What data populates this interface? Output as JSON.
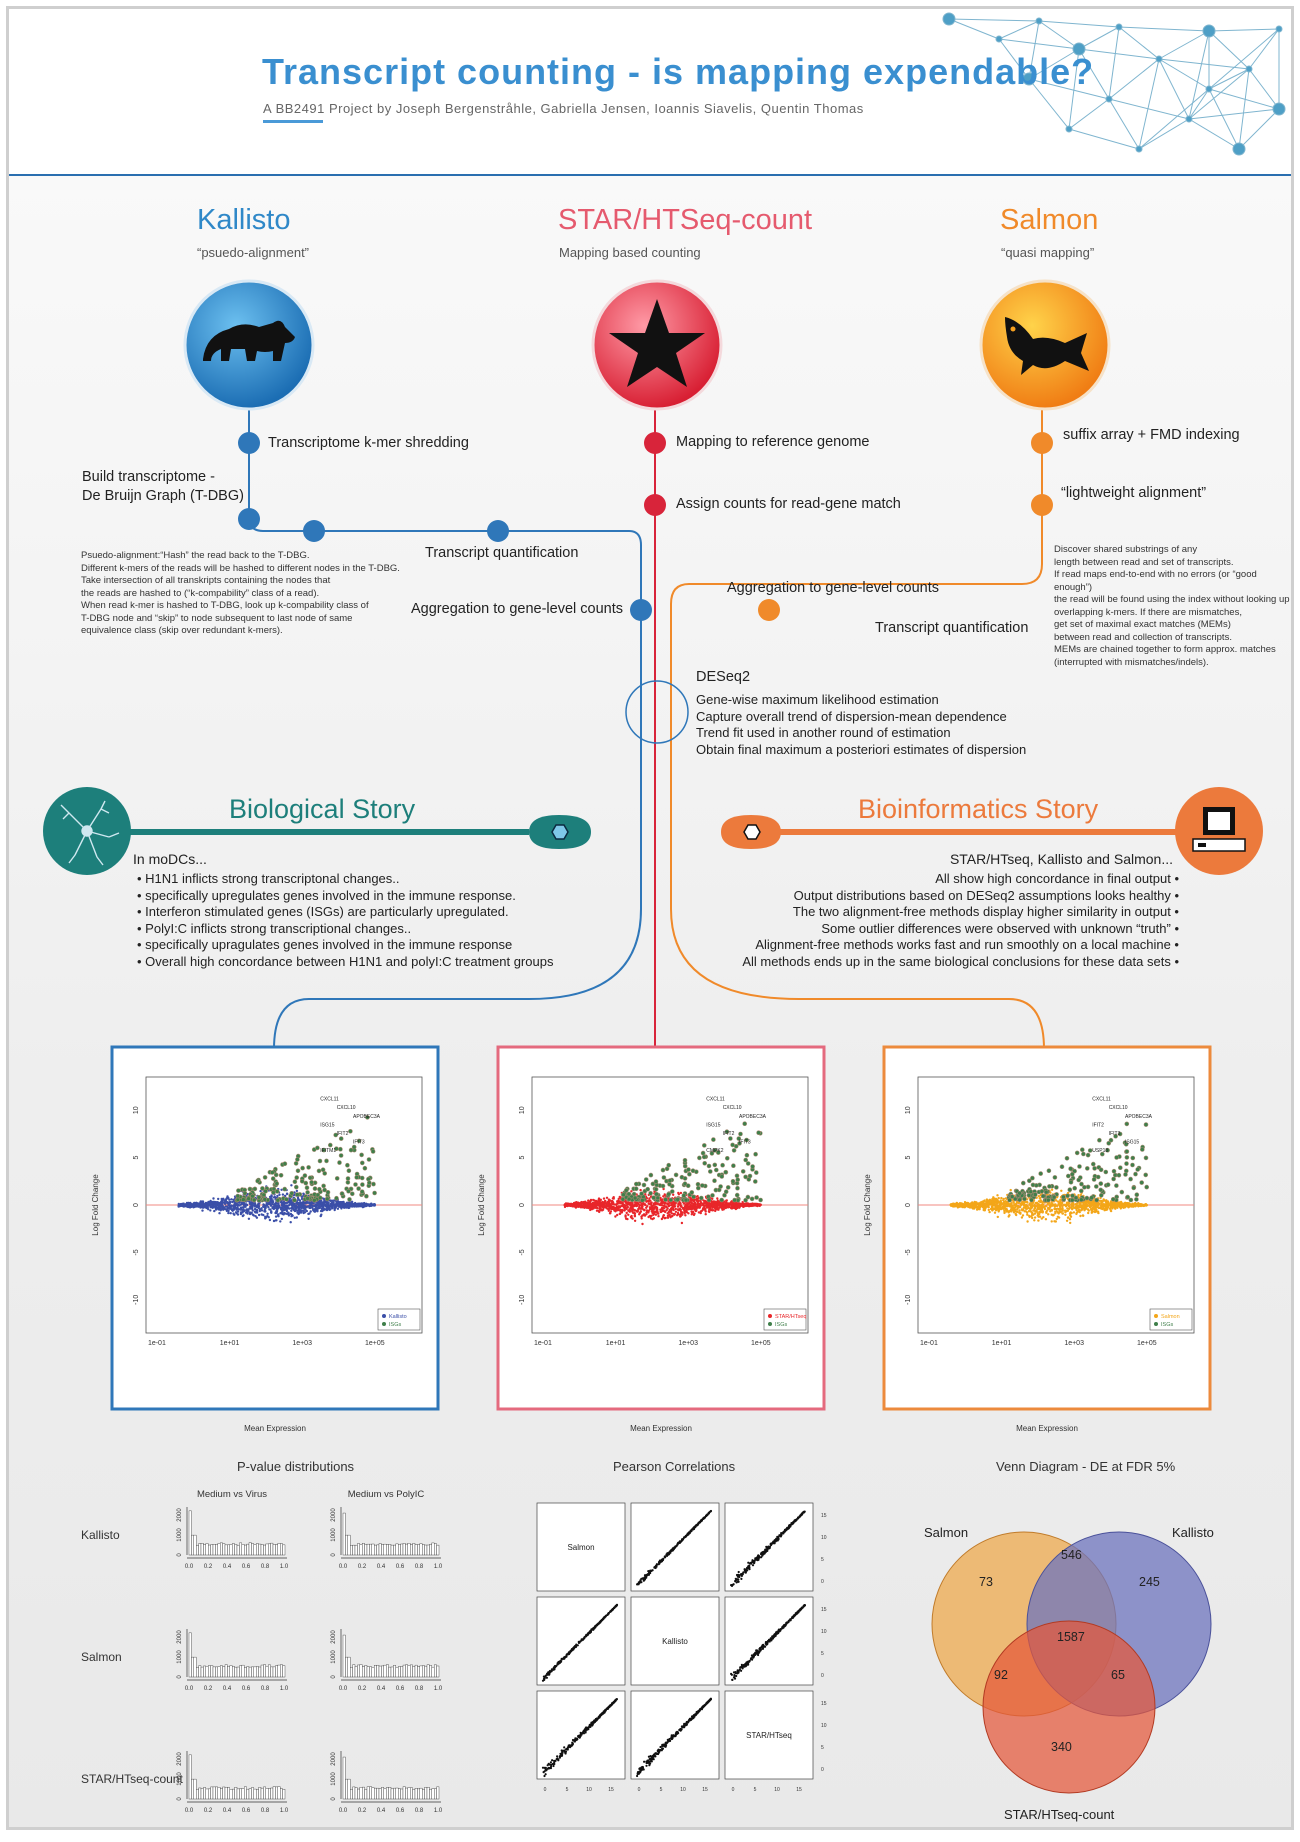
{
  "header": {
    "title": "Transcript counting - is mapping expendable?",
    "subtitle": "A BB2491 Project by Joseph Bergenstråhle, Gabriella Jensen, Ioannis Siavelis, Quentin Thomas"
  },
  "colors": {
    "kallisto": "#2f77b9",
    "star": "#d8243a",
    "salmon": "#f08a2a",
    "bio": "#1d7f7b",
    "bioinfo": "#ec7a3c",
    "title": "#3a8fd0"
  },
  "methods": {
    "kallisto": {
      "name": "Kallisto",
      "sub": "“psuedo-alignment”",
      "icon": "bear-icon"
    },
    "star": {
      "name": "STAR/HTSeq-count",
      "sub": "Mapping based counting",
      "icon": "star-icon"
    },
    "salmon": {
      "name": "Salmon",
      "sub": "“quasi mapping”",
      "icon": "fish-icon"
    }
  },
  "kallisto_steps": {
    "shredding": "Transcriptome k-mer shredding",
    "build1": "Build transcriptome -",
    "build2": "De Bruijn Graph (T-DBG)",
    "quant": "Transcript quantification",
    "agg": "Aggregation to gene-level counts",
    "notes": [
      "Psuedo-alignment:“Hash” the read back to the T-DBG.",
      "Different k-mers of the reads will be hashed to different nodes in the T-DBG.",
      "Take intersection of all transkripts containing the nodes that",
      "the reads are hashed to (“k-compability” class of a read).",
      "When read k-mer is hashed to T-DBG, look up k-compability class of",
      "T-DBG node and “skip” to node subsequent to last node of same",
      "equivalence class (skip over redundant k-mers)."
    ]
  },
  "star_steps": {
    "map": "Mapping to reference genome",
    "assign": "Assign counts for read-gene match"
  },
  "salmon_steps": {
    "suffix": "suffix array + FMD indexing",
    "light": "“lightweight alignment”",
    "agg": "Aggregation to gene-level counts",
    "quant": "Transcript quantification",
    "notes": [
      "Discover shared substrings of any",
      "length between read and set of transcripts.",
      "If read maps end-to-end with no errors (or “good enough”)",
      "the read will be found using the index without looking up",
      "overlapping k-mers. If there are mismatches,",
      "get set of maximal exact matches (MEMs)",
      "between read and collection of transcripts.",
      "MEMs are chained together to form approx. matches",
      "(interrupted with mismatches/indels)."
    ]
  },
  "deseq": {
    "title": "DESeq2",
    "lines": [
      "Gene-wise maximum likelihood estimation",
      "Capture overall trend of dispersion-mean dependence",
      "Trend fit used in another round of estimation",
      "Obtain final maximum a posteriori estimates of dispersion"
    ]
  },
  "bio_story": {
    "title": "Biological Story",
    "intro": "In moDCs...",
    "bullets": [
      "• H1N1 inflicts strong transcriptonal changes..",
      "• specifically upregulates genes involved in the immune response.",
      "• Interferon stimulated genes (ISGs) are particularly upregulated.",
      "• PolyI:C inflicts strong transcriptional changes..",
      "• specifically upragulates genes involved in the immune response",
      "• Overall high concordance between H1N1 and polyI:C treatment groups"
    ]
  },
  "bioinfo_story": {
    "title": "Bioinformatics Story",
    "intro": "STAR/HTseq, Kallisto and Salmon...",
    "bullets": [
      "All show high concordance in final output •",
      "Output distributions based on DESeq2 assumptions looks healthy •",
      "The two alignment-free methods display higher similarity in output •",
      "Some outlier differences were observed with unknown “truth” •",
      "Alignment-free methods works fast and run smoothly on a local machine •",
      "All methods ends up in the same biological conclusions for these data sets •"
    ]
  },
  "ma_plots": {
    "xlabel": "Mean Expression",
    "ylabel": "Log Fold Change",
    "xticks": [
      "1e-01",
      "1e+01",
      "1e+03",
      "1e+05"
    ],
    "yticks": [
      "-10",
      "-5",
      "0",
      "5",
      "10"
    ],
    "isg_label": "ISGs",
    "plots": [
      {
        "legend": "Kallisto",
        "color": "#3b4fa8",
        "genes": [
          "CXCL11",
          "CXCL10",
          "APOBEC3A",
          "ISG15",
          "IFIT2",
          "IFIT3",
          "IFITM1"
        ]
      },
      {
        "legend": "STAR/HTseq",
        "color": "#e8262a",
        "genes": [
          "CXCL11",
          "CXCL10",
          "APOBEC3A",
          "ISG15",
          "IFIT2",
          "IFIT3",
          "CMPK2"
        ]
      },
      {
        "legend": "Salmon",
        "color": "#f3a619",
        "genes": [
          "CXCL11",
          "CXCL10",
          "APOBEC3A",
          "IFIT2",
          "IFIT3",
          "ISG15",
          "USP18"
        ]
      }
    ]
  },
  "pvalue": {
    "title": "P-value distributions",
    "cols": [
      "Medium vs Virus",
      "Medium vs PolyIC"
    ],
    "rows": [
      "Kallisto",
      "Salmon",
      "STAR/HTseq-count"
    ],
    "xticks": [
      "0.0",
      "0.2",
      "0.4",
      "0.6",
      "0.8",
      "1.0"
    ],
    "yticks_a": [
      "0",
      "1000",
      "2000"
    ],
    "yticks_b": [
      "0",
      "1000",
      "2000"
    ]
  },
  "pearson": {
    "title": "Pearson Correlations",
    "labels": [
      "Salmon",
      "Kallisto",
      "STAR/HTseq"
    ],
    "ticks": [
      "0",
      "5",
      "10",
      "15"
    ]
  },
  "venn": {
    "title": "Venn Diagram - DE at FDR 5%",
    "sets": [
      "Salmon",
      "Kallisto",
      "STAR/HTseq-count"
    ],
    "regions": {
      "salmon_only": "73",
      "salmon_kallisto": "546",
      "kallisto_only": "245",
      "all": "1587",
      "salmon_star": "92",
      "kallisto_star": "65",
      "star_only": "340"
    }
  }
}
